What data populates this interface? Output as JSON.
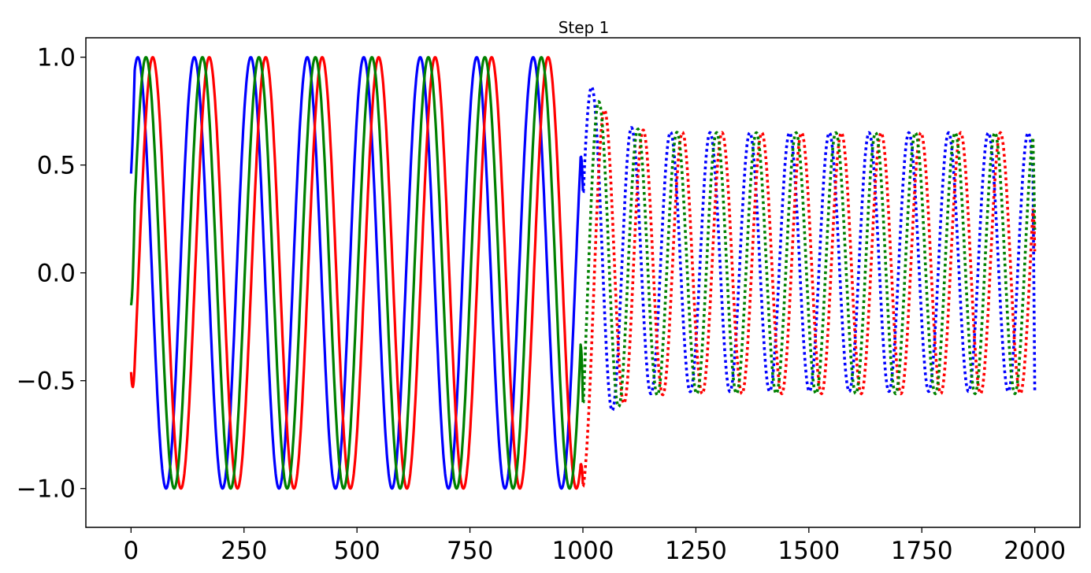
{
  "chart_data": {
    "type": "line",
    "title": "Step 1",
    "xlabel": "",
    "ylabel": "",
    "xlim": [
      -100,
      2100
    ],
    "ylim": [
      -1.18,
      1.09
    ],
    "x_ticks": [
      0,
      250,
      500,
      750,
      1000,
      1250,
      1500,
      1750,
      2000
    ],
    "x_tick_labels": [
      "0",
      "250",
      "500",
      "750",
      "1000",
      "1250",
      "1500",
      "1750",
      "2000"
    ],
    "y_ticks": [
      1.0,
      0.5,
      0.0,
      -0.5,
      -1.0
    ],
    "y_tick_labels": [
      "1.0",
      "0.5",
      "0.0",
      "−0.5",
      "−1.0"
    ],
    "grid": false,
    "legend": "none",
    "series": [
      {
        "color": "#0000ff",
        "segments": [
          {
            "style": "solid",
            "x_range": [
              0,
              1000
            ],
            "start_y": 0.46,
            "amplitude": 1.0,
            "period": 125,
            "peak_x": 15,
            "end_y": 0.38
          },
          {
            "style": "dotted",
            "x_range": [
              1000,
              2000
            ],
            "start_y": 0.38,
            "first_peak_y": 0.8,
            "first_trough_y": -0.65,
            "settled_max": 0.65,
            "settled_min": -0.55,
            "period": 88,
            "end_y": -0.55
          }
        ]
      },
      {
        "color": "#ff0000",
        "segments": [
          {
            "style": "solid",
            "x_range": [
              0,
              1000
            ],
            "start_y": -0.46,
            "amplitude": 1.0,
            "period": 125,
            "peak_x": 48,
            "end_y": -0.98
          },
          {
            "style": "dotted",
            "x_range": [
              1000,
              2000
            ],
            "start_y": -0.98,
            "first_peak_y": 0.67,
            "first_trough_y": -0.57,
            "settled_max": 0.65,
            "settled_min": -0.56,
            "period": 88,
            "end_y": 0.1
          }
        ]
      },
      {
        "color": "#008000",
        "segments": [
          {
            "style": "solid",
            "x_range": [
              0,
              1000
            ],
            "start_y": -0.15,
            "amplitude": 1.0,
            "period": 125,
            "peak_x": 33,
            "end_y": -0.6
          },
          {
            "style": "dotted",
            "x_range": [
              1000,
              2000
            ],
            "start_y": -0.6,
            "first_peak_y": 0.73,
            "first_trough_y": -0.62,
            "settled_max": 0.65,
            "settled_min": -0.56,
            "period": 88,
            "end_y": 0.2
          }
        ]
      }
    ]
  }
}
